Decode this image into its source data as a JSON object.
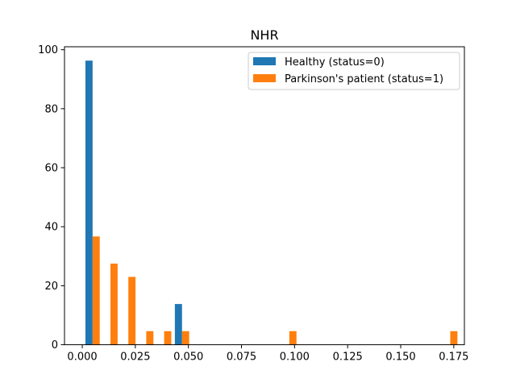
{
  "chart_data": {
    "type": "bar",
    "title": "NHR",
    "xlabel": "",
    "ylabel": "",
    "xlim": [
      -0.00837,
      0.18
    ],
    "ylim": [
      0,
      101
    ],
    "xticks": [
      0.0,
      0.025,
      0.05,
      0.075,
      0.1,
      0.125,
      0.15,
      0.175
    ],
    "xtick_labels": [
      "0.000",
      "0.025",
      "0.050",
      "0.075",
      "0.100",
      "0.125",
      "0.150",
      "0.175"
    ],
    "yticks": [
      0,
      20,
      40,
      60,
      80,
      100
    ],
    "ytick_labels": [
      "0",
      "20",
      "40",
      "60",
      "80",
      "100"
    ],
    "bin_edges": [
      0.00065,
      0.00907,
      0.0175,
      0.02592,
      0.03435,
      0.04277,
      0.0512,
      0.05962,
      0.06804,
      0.07647,
      0.08489,
      0.09332,
      0.10174,
      0.11016,
      0.11859,
      0.12701,
      0.13544,
      0.14386,
      0.15228,
      0.16071,
      0.16913,
      0.17756
    ],
    "grid": false,
    "legend_position": "upper right",
    "series": [
      {
        "name": "Healthy (status=0)",
        "color": "#1f77b4",
        "values": [
          96.3,
          0,
          0,
          0,
          0,
          13.8,
          0,
          0,
          0,
          0,
          0,
          0,
          0,
          0,
          0,
          0,
          0,
          0,
          0,
          0,
          0
        ]
      },
      {
        "name": "Parkinson's patient (status=1)",
        "color": "#ff7f0e",
        "values": [
          36.7,
          27.5,
          23.0,
          4.6,
          4.6,
          4.6,
          0,
          0,
          0,
          0,
          0,
          4.6,
          0,
          0,
          0,
          0,
          0,
          0,
          0,
          0,
          4.6
        ]
      }
    ]
  }
}
